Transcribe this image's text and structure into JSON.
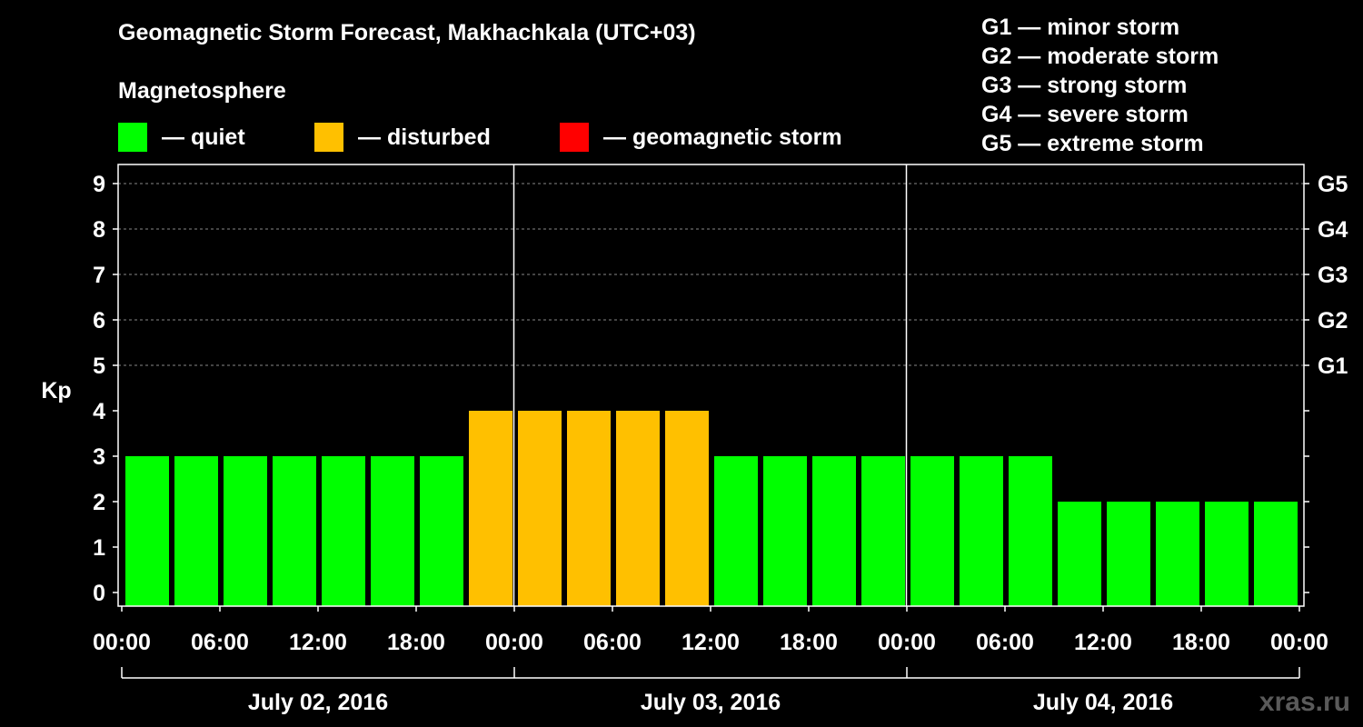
{
  "colors": {
    "background": "#000000",
    "quiet": "#00ff00",
    "disturbed": "#ffc000",
    "storm": "#ff0000",
    "text": "#ffffff"
  },
  "header": {
    "title": "Geomagnetic Storm Forecast, Makhachkala (UTC+03)",
    "subtitle": "Magnetosphere"
  },
  "legend": {
    "quiet": "— quiet",
    "disturbed": "— disturbed",
    "storm": "— geomagnetic storm"
  },
  "storm_levels": [
    "G1 — minor storm",
    "G2 — moderate storm",
    "G3 — strong storm",
    "G4 — severe storm",
    "G5 — extreme storm"
  ],
  "watermark": "xras.ru",
  "chart_data": {
    "type": "bar",
    "ylabel": "Kp",
    "ylim": [
      0,
      9
    ],
    "yticks": [
      0,
      1,
      2,
      3,
      4,
      5,
      6,
      7,
      8,
      9
    ],
    "right_ticks": [
      {
        "value": 5,
        "label": "G1"
      },
      {
        "value": 6,
        "label": "G2"
      },
      {
        "value": 7,
        "label": "G3"
      },
      {
        "value": 8,
        "label": "G4"
      },
      {
        "value": 9,
        "label": "G5"
      }
    ],
    "x_tick_labels": [
      "00:00",
      "06:00",
      "12:00",
      "18:00",
      "00:00",
      "06:00",
      "12:00",
      "18:00",
      "00:00",
      "06:00",
      "12:00",
      "18:00",
      "00:00"
    ],
    "days": [
      "July 02, 2016",
      "July 03, 2016",
      "July 04, 2016"
    ],
    "interval_hours": 3,
    "values": [
      3,
      3,
      3,
      3,
      3,
      3,
      3,
      4,
      4,
      4,
      4,
      4,
      3,
      3,
      3,
      3,
      3,
      3,
      3,
      2,
      2,
      2,
      2,
      2
    ],
    "status": [
      "quiet",
      "quiet",
      "quiet",
      "quiet",
      "quiet",
      "quiet",
      "quiet",
      "disturbed",
      "disturbed",
      "disturbed",
      "disturbed",
      "disturbed",
      "quiet",
      "quiet",
      "quiet",
      "quiet",
      "quiet",
      "quiet",
      "quiet",
      "quiet",
      "quiet",
      "quiet",
      "quiet",
      "quiet"
    ],
    "grid": "dashed at Kp 5-9"
  }
}
